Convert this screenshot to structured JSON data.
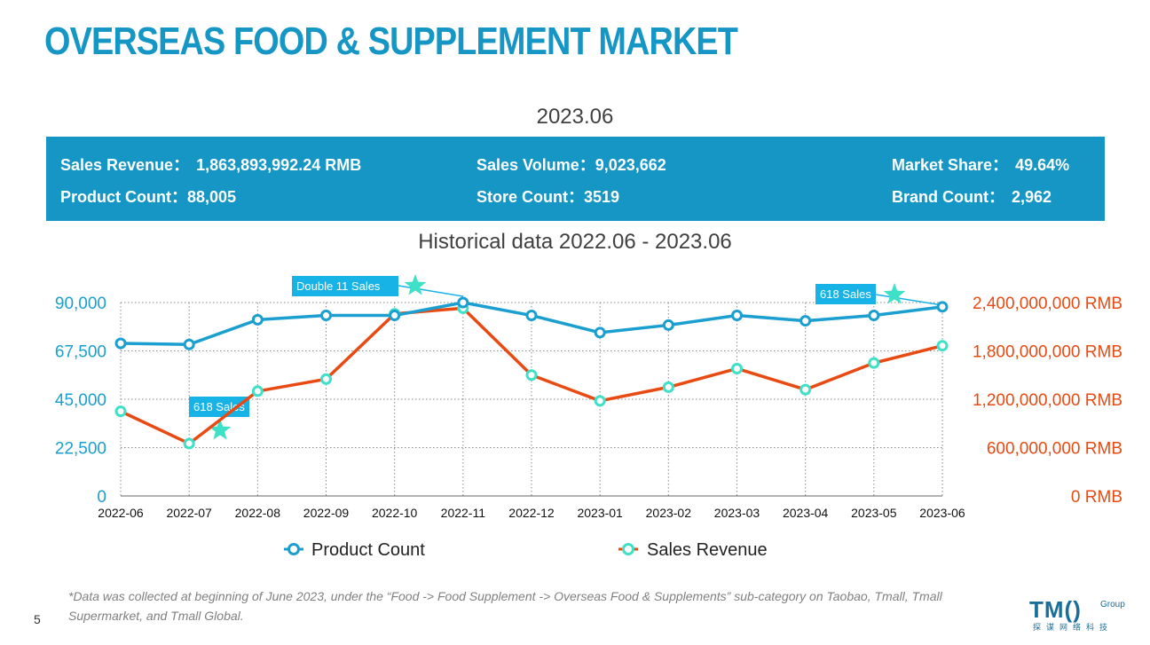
{
  "page": {
    "title": "OVERSEAS FOOD & SUPPLEMENT MARKET",
    "period": "2023.06",
    "historical_title": "Historical data 2022.06 - 2023.06",
    "footnote": "*Data was collected at beginning of June 2023, under the “Food -> Food Supplement -> Overseas Food & Supplements” sub-category on Taobao, Tmall, Tmall Supermarket, and Tmall Global.",
    "page_number": "5"
  },
  "stats": {
    "sales_revenue_label": "Sales Revenue：",
    "sales_revenue_value": "1,863,893,992.24  RMB",
    "sales_volume_label": "Sales Volume：",
    "sales_volume_value": "9,023,662",
    "market_share_label": "Market Share：",
    "market_share_value": "49.64%",
    "product_count_label": "Product Count：",
    "product_count_value": "88,005",
    "store_count_label": "Store Count：",
    "store_count_value": "3519",
    "brand_count_label": "Brand Count：",
    "brand_count_value": "2,962"
  },
  "logo": {
    "main": "TM()",
    "sup": "Group",
    "cn": "探谋网络科技"
  },
  "colors": {
    "accent": "#1596c4",
    "product": "#1a9fd0",
    "revenue": "#e84a12",
    "revenue_marker": "#3fe0c8",
    "callout": "#17b3e6",
    "star": "#3fe0c8"
  },
  "chart_data": {
    "type": "line",
    "categories": [
      "2022-06",
      "2022-07",
      "2022-08",
      "2022-09",
      "2022-10",
      "2022-11",
      "2022-12",
      "2023-01",
      "2023-02",
      "2023-03",
      "2023-04",
      "2023-05",
      "2023-06"
    ],
    "y_left": {
      "ylim": [
        0,
        90000
      ],
      "ticks": [
        0,
        22500,
        45000,
        67500,
        90000
      ],
      "tick_labels": [
        "0",
        "22,500",
        "45,000",
        "67,500",
        "90,000"
      ]
    },
    "y_right": {
      "ylim": [
        0,
        2400000000
      ],
      "ticks": [
        0,
        600000000,
        1200000000,
        1800000000,
        2400000000
      ],
      "tick_labels": [
        "0 RMB",
        "600,000,000 RMB",
        "1,200,000,000 RMB",
        "1,800,000,000 RMB",
        "2,400,000,000 RMB"
      ]
    },
    "series": [
      {
        "name": "Product Count",
        "axis": "left",
        "values": [
          71000,
          70500,
          82000,
          84000,
          84000,
          90000,
          84000,
          76000,
          79500,
          84000,
          81500,
          84000,
          88005
        ]
      },
      {
        "name": "Sales Revenue",
        "axis": "right",
        "values": [
          1050000000,
          650000000,
          1300000000,
          1450000000,
          2260000000,
          2330000000,
          1500000000,
          1180000000,
          1350000000,
          1580000000,
          1320000000,
          1650000000,
          1863893992
        ]
      }
    ],
    "annotations": [
      {
        "text": "Double 11 Sales",
        "category": "2022-11"
      },
      {
        "text": "618 Sales",
        "category": "2022-07"
      },
      {
        "text": "618 Sales",
        "category": "2023-06"
      }
    ],
    "grid": true,
    "legend_position": "bottom"
  }
}
